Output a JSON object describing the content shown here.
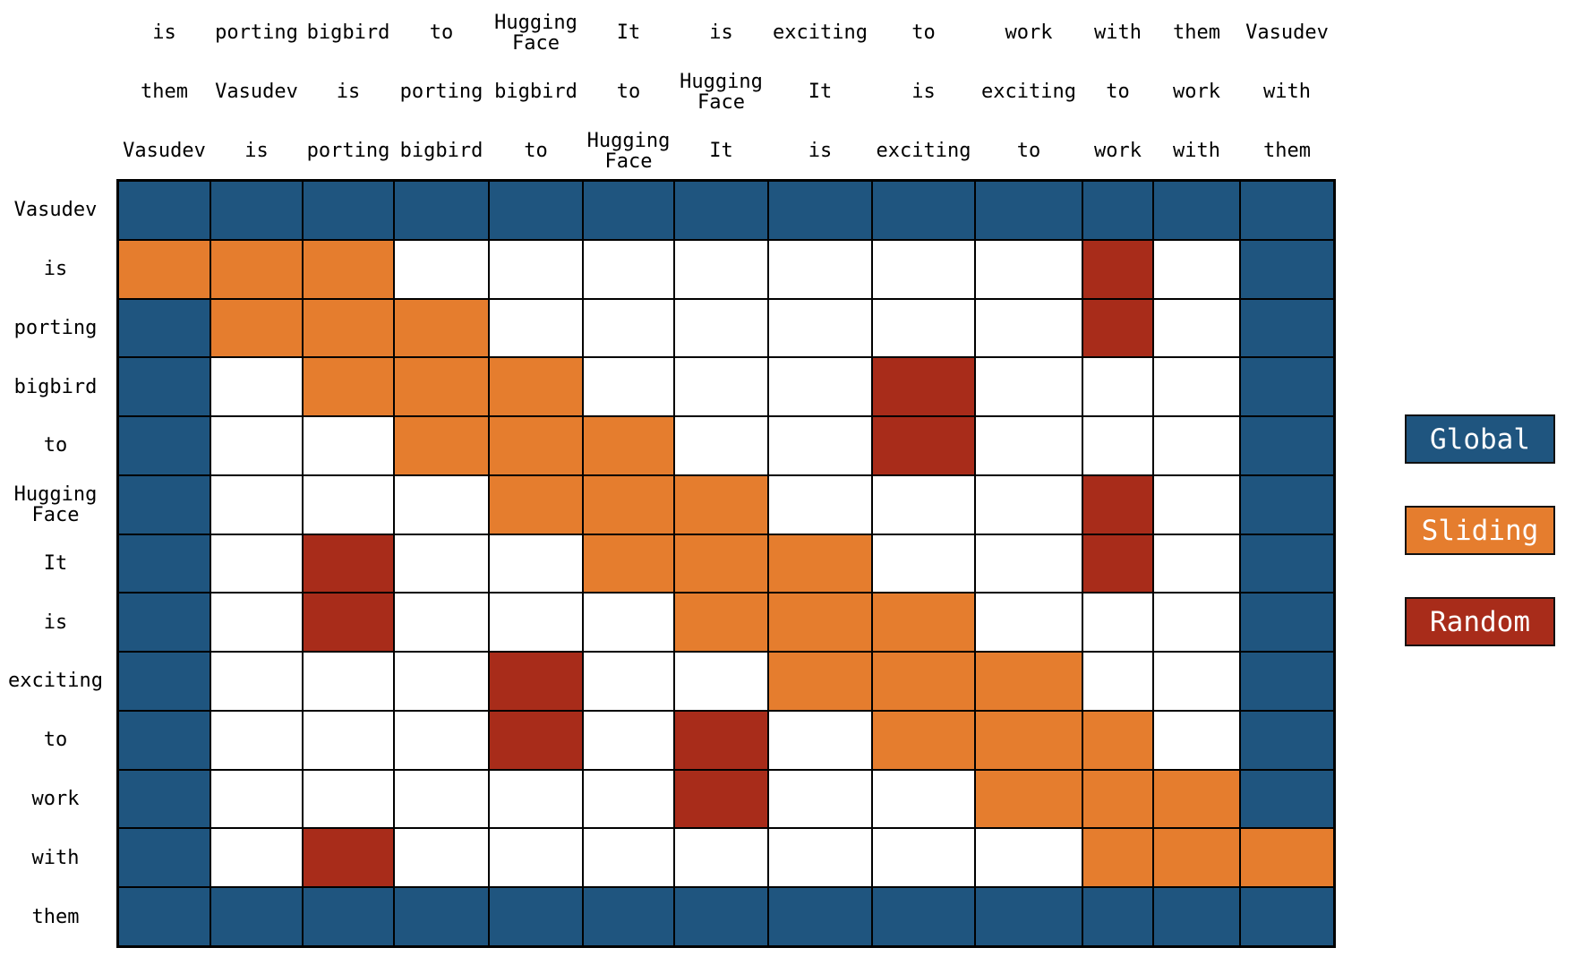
{
  "tokens": [
    "Vasudev",
    "is",
    "porting",
    "bigbird",
    "to",
    "Hugging Face",
    "It",
    "is",
    "exciting",
    "to",
    "work",
    "with",
    "them"
  ],
  "headers": {
    "top_row": [
      "is",
      "porting",
      "bigbird",
      "to",
      "Hugging Face",
      "It",
      "is",
      "exciting",
      "to",
      "work",
      "with",
      "them",
      "Vasudev"
    ],
    "middle_row": [
      "them",
      "Vasudev",
      "is",
      "porting",
      "bigbird",
      "to",
      "Hugging Face",
      "It",
      "is",
      "exciting",
      "to",
      "work",
      "with"
    ],
    "bottom_row": [
      "Vasudev",
      "is",
      "porting",
      "bigbird",
      "to",
      "Hugging Face",
      "It",
      "is",
      "exciting",
      "to",
      "work",
      "with",
      "them"
    ]
  },
  "matrix_codes": [
    "GGGGGGGGGGGGG",
    "SSS.......R.G",
    "GSSS......R.G",
    "G.SSS...R...G",
    "G..SSS..R...G",
    "G...SSS...R.G",
    "G.R..SSS..R.G",
    "G.R...SSS...G",
    "G...R..SSS..G",
    "G...R.R.SSS.G",
    "G.....R..SSSG",
    "G.R.......SSS",
    "GGGGGGGGGGGGG"
  ],
  "code_meaning": {
    "G": "Global",
    "S": "Sliding",
    "R": "Random",
    ".": "none"
  },
  "legend": {
    "items": [
      {
        "label": "Global",
        "color": "#1f557f"
      },
      {
        "label": "Sliding",
        "color": "#e57d2e"
      },
      {
        "label": "Random",
        "color": "#a82c1a"
      }
    ]
  },
  "colors": {
    "global": "#1f557f",
    "sliding": "#e57d2e",
    "random": "#a82c1a",
    "none": "#ffffff",
    "gridline": "#000000"
  },
  "chart_data": {
    "type": "heatmap",
    "title": "",
    "x_tick_labels": [
      "Vasudev",
      "is",
      "porting",
      "bigbird",
      "to",
      "Hugging Face",
      "It",
      "is",
      "exciting",
      "to",
      "work",
      "with",
      "them"
    ],
    "x_tick_labels_shifted_minus1": [
      "them",
      "Vasudev",
      "is",
      "porting",
      "bigbird",
      "to",
      "Hugging Face",
      "It",
      "is",
      "exciting",
      "to",
      "work",
      "with"
    ],
    "x_tick_labels_shifted_plus1": [
      "is",
      "porting",
      "bigbird",
      "to",
      "Hugging Face",
      "It",
      "is",
      "exciting",
      "to",
      "work",
      "with",
      "them",
      "Vasudev"
    ],
    "y_tick_labels": [
      "Vasudev",
      "is",
      "porting",
      "bigbird",
      "to",
      "Hugging Face",
      "It",
      "is",
      "exciting",
      "to",
      "work",
      "with",
      "them"
    ],
    "cell_categories": [
      [
        "Global",
        "Global",
        "Global",
        "Global",
        "Global",
        "Global",
        "Global",
        "Global",
        "Global",
        "Global",
        "Global",
        "Global",
        "Global"
      ],
      [
        "Sliding",
        "Sliding",
        "Sliding",
        "none",
        "none",
        "none",
        "none",
        "none",
        "none",
        "none",
        "Random",
        "none",
        "Global"
      ],
      [
        "Global",
        "Sliding",
        "Sliding",
        "Sliding",
        "none",
        "none",
        "none",
        "none",
        "none",
        "none",
        "Random",
        "none",
        "Global"
      ],
      [
        "Global",
        "none",
        "Sliding",
        "Sliding",
        "Sliding",
        "none",
        "none",
        "none",
        "Random",
        "none",
        "none",
        "none",
        "Global"
      ],
      [
        "Global",
        "none",
        "none",
        "Sliding",
        "Sliding",
        "Sliding",
        "none",
        "none",
        "Random",
        "none",
        "none",
        "none",
        "Global"
      ],
      [
        "Global",
        "none",
        "none",
        "none",
        "Sliding",
        "Sliding",
        "Sliding",
        "none",
        "none",
        "none",
        "Random",
        "none",
        "Global"
      ],
      [
        "Global",
        "none",
        "Random",
        "none",
        "none",
        "Sliding",
        "Sliding",
        "Sliding",
        "none",
        "none",
        "Random",
        "none",
        "Global"
      ],
      [
        "Global",
        "none",
        "Random",
        "none",
        "none",
        "none",
        "Sliding",
        "Sliding",
        "Sliding",
        "none",
        "none",
        "none",
        "Global"
      ],
      [
        "Global",
        "none",
        "none",
        "none",
        "Random",
        "none",
        "none",
        "Sliding",
        "Sliding",
        "Sliding",
        "none",
        "none",
        "Global"
      ],
      [
        "Global",
        "none",
        "none",
        "none",
        "Random",
        "none",
        "Random",
        "none",
        "Sliding",
        "Sliding",
        "Sliding",
        "none",
        "Global"
      ],
      [
        "Global",
        "none",
        "none",
        "none",
        "none",
        "none",
        "Random",
        "none",
        "none",
        "Sliding",
        "Sliding",
        "Sliding",
        "Global"
      ],
      [
        "Global",
        "none",
        "Random",
        "none",
        "none",
        "none",
        "none",
        "none",
        "none",
        "none",
        "Sliding",
        "Sliding",
        "Sliding"
      ],
      [
        "Global",
        "Global",
        "Global",
        "Global",
        "Global",
        "Global",
        "Global",
        "Global",
        "Global",
        "Global",
        "Global",
        "Global",
        "Global"
      ]
    ],
    "legend_entries": [
      "Global",
      "Sliding",
      "Random"
    ],
    "legend_position": "right",
    "grid": true
  }
}
